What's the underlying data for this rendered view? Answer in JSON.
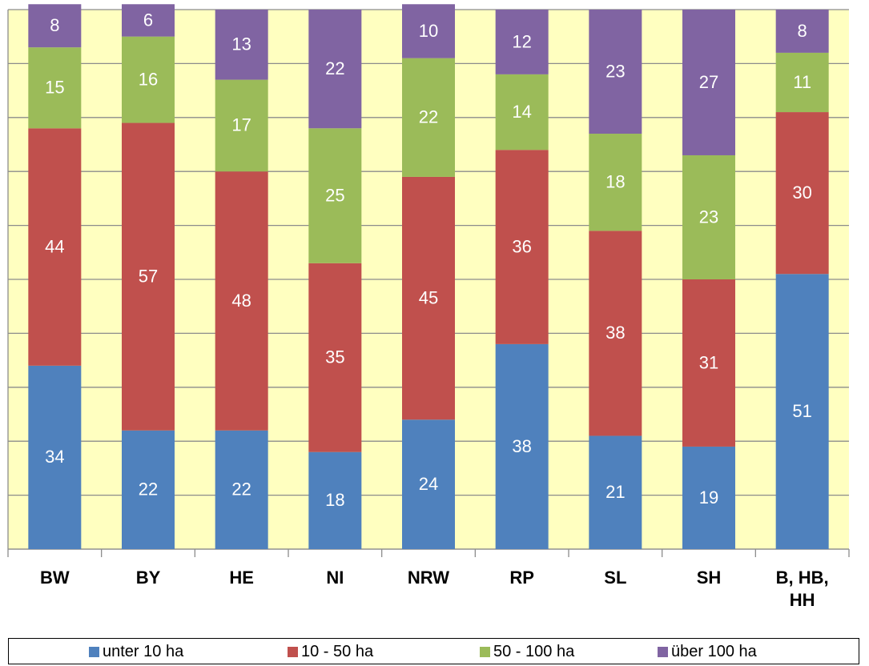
{
  "chart_data": {
    "type": "stacked-bar",
    "categories": [
      "BW",
      "BY",
      "HE",
      "NI",
      "NRW",
      "RP",
      "SL",
      "SH",
      "B, HB, HH"
    ],
    "series": [
      {
        "name": "unter 10 ha",
        "color": "#4f81bd",
        "values": [
          34,
          22,
          22,
          18,
          24,
          38,
          21,
          19,
          51
        ]
      },
      {
        "name": "10 - 50 ha",
        "color": "#c0504d",
        "values": [
          44,
          57,
          48,
          35,
          45,
          36,
          38,
          31,
          30
        ]
      },
      {
        "name": "50 - 100 ha",
        "color": "#9bbb59",
        "values": [
          15,
          16,
          17,
          25,
          22,
          14,
          18,
          23,
          11
        ]
      },
      {
        "name": "über 100 ha",
        "color": "#8064a2",
        "values": [
          8,
          6,
          13,
          22,
          10,
          12,
          23,
          27,
          8
        ]
      }
    ],
    "ylim": [
      0,
      100
    ],
    "yticks": [
      0,
      10,
      20,
      30,
      40,
      50,
      60,
      70,
      80,
      90,
      100
    ],
    "grid": true
  }
}
